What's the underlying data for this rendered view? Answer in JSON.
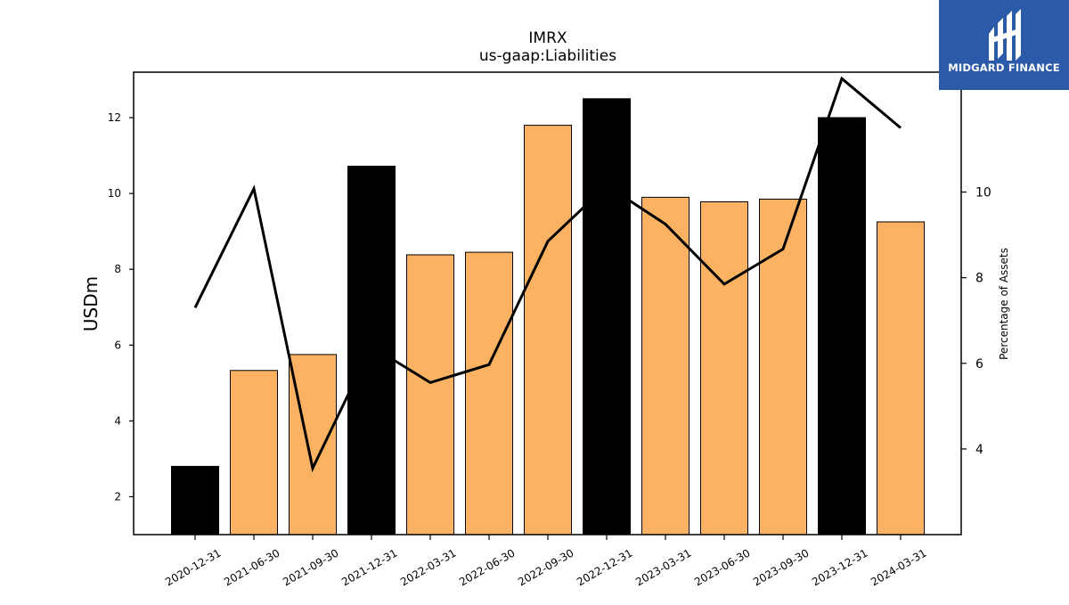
{
  "chart_data": {
    "type": "bar",
    "title": "IMRX",
    "subtitle": "us-gaap:Liabilities",
    "ylabel": "USDm",
    "y2label": "Percentage of Assets",
    "ylim": [
      1.0,
      13.2
    ],
    "y2lim": [
      2.0,
      12.8
    ],
    "yticks": [
      2,
      4,
      6,
      8,
      10,
      12
    ],
    "y2ticks": [
      4,
      6,
      8,
      10
    ],
    "categories": [
      "2020-12-31",
      "2021-06-30",
      "2021-09-30",
      "2021-12-31",
      "2022-03-31",
      "2022-06-30",
      "2022-09-30",
      "2022-12-31",
      "2023-03-31",
      "2023-06-30",
      "2023-09-30",
      "2023-12-31",
      "2024-03-31"
    ],
    "series": [
      {
        "type": "bar",
        "axis": "left",
        "values": [
          2.8,
          5.33,
          5.75,
          10.72,
          8.38,
          8.45,
          11.8,
          12.5,
          9.9,
          9.78,
          9.85,
          12.0,
          9.25
        ],
        "colors": [
          "#000000",
          "#fbb262",
          "#fbb262",
          "#000000",
          "#fbb262",
          "#fbb262",
          "#fbb262",
          "#000000",
          "#fbb262",
          "#fbb262",
          "#fbb262",
          "#000000",
          "#fbb262"
        ]
      },
      {
        "type": "line",
        "axis": "right",
        "color": "#000000",
        "values": [
          7.3,
          10.08,
          3.55,
          6.4,
          5.55,
          5.97,
          8.85,
          10.15,
          9.25,
          7.85,
          8.67,
          12.65,
          11.5
        ]
      }
    ],
    "grid": false,
    "legend": "none"
  },
  "logo": {
    "name": "MIDGARD FINANCE",
    "color": "#2b5aa8"
  }
}
